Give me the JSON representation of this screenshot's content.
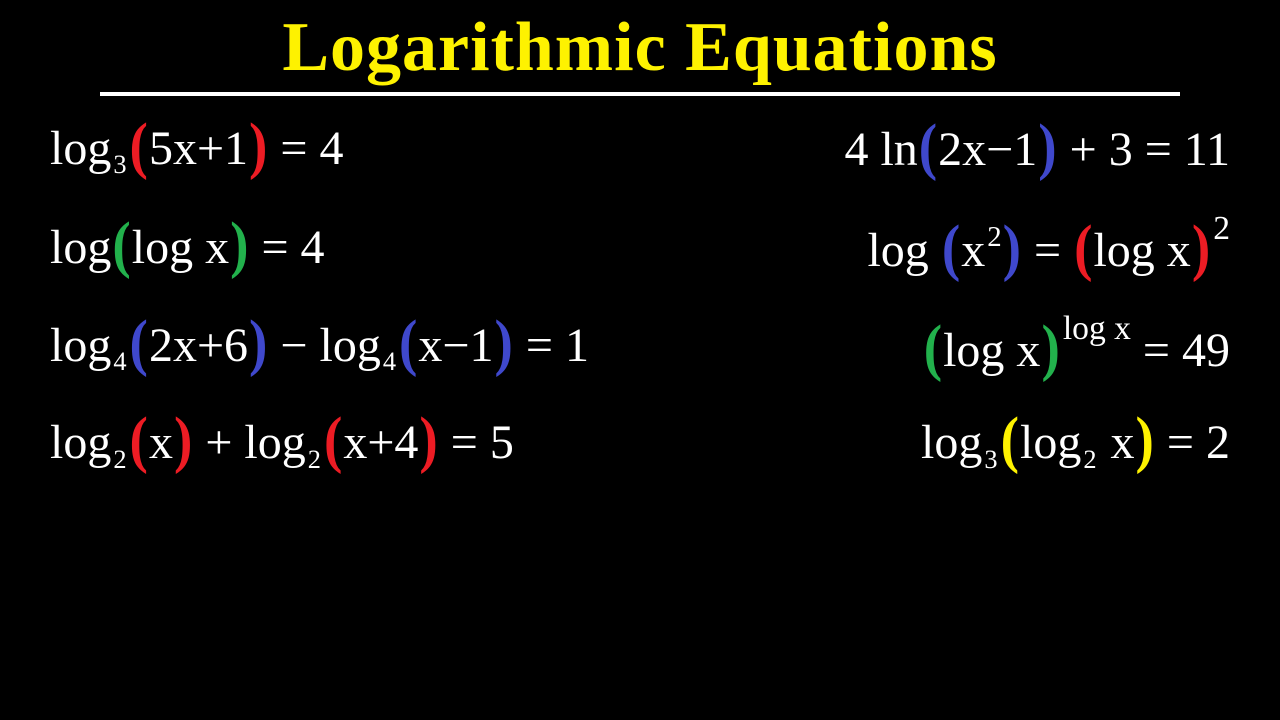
{
  "colors": {
    "bg": "#000000",
    "title": "#fef200",
    "underline": "#ffffff",
    "white": "#ffffff",
    "red": "#ed1c24",
    "green": "#22b14c",
    "blue": "#3f48cc",
    "yellow": "#fef200"
  },
  "title": "Logarithmic Equations",
  "equations": [
    {
      "left": [
        {
          "t": "log",
          "c": "white"
        },
        {
          "t": "3",
          "c": "white",
          "sub": true
        },
        {
          "t": "(",
          "c": "red",
          "paren": true
        },
        {
          "t": "5x+1",
          "c": "white"
        },
        {
          "t": ")",
          "c": "red",
          "paren": true
        },
        {
          "t": " = 4",
          "c": "white"
        }
      ],
      "right": [
        {
          "t": "4 ln",
          "c": "white"
        },
        {
          "t": "(",
          "c": "blue",
          "paren": true
        },
        {
          "t": "2x−1",
          "c": "white"
        },
        {
          "t": ")",
          "c": "blue",
          "paren": true
        },
        {
          "t": " + 3 = 11",
          "c": "white"
        }
      ]
    },
    {
      "left": [
        {
          "t": "log",
          "c": "white"
        },
        {
          "t": "(",
          "c": "green",
          "paren": true
        },
        {
          "t": "log x",
          "c": "white"
        },
        {
          "t": ")",
          "c": "green",
          "paren": true
        },
        {
          "t": " = 4",
          "c": "white"
        }
      ],
      "right": [
        {
          "t": "log ",
          "c": "white"
        },
        {
          "t": "(",
          "c": "blue",
          "paren": true
        },
        {
          "t": "x",
          "c": "white"
        },
        {
          "t": "2",
          "c": "white",
          "sup": true
        },
        {
          "t": ")",
          "c": "blue",
          "paren": true
        },
        {
          "t": " = ",
          "c": "white"
        },
        {
          "t": "(",
          "c": "red",
          "paren": true
        },
        {
          "t": "log x",
          "c": "white"
        },
        {
          "t": ")",
          "c": "red",
          "paren": true
        },
        {
          "t": "2",
          "c": "white",
          "supbig": true
        }
      ]
    },
    {
      "left": [
        {
          "t": "log",
          "c": "white"
        },
        {
          "t": "4",
          "c": "white",
          "sub": true
        },
        {
          "t": "(",
          "c": "blue",
          "paren": true
        },
        {
          "t": "2x+6",
          "c": "white"
        },
        {
          "t": ")",
          "c": "blue",
          "paren": true
        },
        {
          "t": " − log",
          "c": "white"
        },
        {
          "t": "4",
          "c": "white",
          "sub": true
        },
        {
          "t": "(",
          "c": "blue",
          "paren": true
        },
        {
          "t": "x−1",
          "c": "white"
        },
        {
          "t": ")",
          "c": "blue",
          "paren": true
        },
        {
          "t": " = 1",
          "c": "white"
        }
      ],
      "right": [
        {
          "t": "(",
          "c": "green",
          "paren": true
        },
        {
          "t": "log x",
          "c": "white"
        },
        {
          "t": ")",
          "c": "green",
          "paren": true
        },
        {
          "t": "log x",
          "c": "white",
          "supbig": true
        },
        {
          "t": " = 49",
          "c": "white"
        }
      ]
    },
    {
      "left": [
        {
          "t": "log",
          "c": "white"
        },
        {
          "t": "2",
          "c": "white",
          "sub": true
        },
        {
          "t": "(",
          "c": "red",
          "paren": true
        },
        {
          "t": "x",
          "c": "white"
        },
        {
          "t": ")",
          "c": "red",
          "paren": true
        },
        {
          "t": " + log",
          "c": "white"
        },
        {
          "t": "2",
          "c": "white",
          "sub": true
        },
        {
          "t": "(",
          "c": "red",
          "paren": true
        },
        {
          "t": "x+4",
          "c": "white"
        },
        {
          "t": ")",
          "c": "red",
          "paren": true
        },
        {
          "t": " = 5",
          "c": "white"
        }
      ],
      "right": [
        {
          "t": "log",
          "c": "white"
        },
        {
          "t": "3",
          "c": "white",
          "sub": true
        },
        {
          "t": "(",
          "c": "yellow",
          "paren": true
        },
        {
          "t": "log",
          "c": "white"
        },
        {
          "t": "2",
          "c": "white",
          "sub": true
        },
        {
          "t": " x",
          "c": "white"
        },
        {
          "t": ")",
          "c": "yellow",
          "paren": true
        },
        {
          "t": " = 2",
          "c": "white"
        }
      ]
    }
  ]
}
